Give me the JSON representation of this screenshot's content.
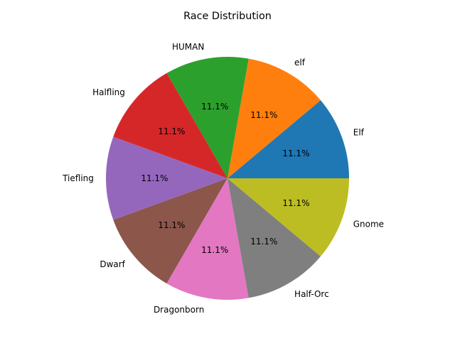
{
  "chart_data": {
    "type": "pie",
    "title": "Race Distribution",
    "categories": [
      "Elf",
      "elf",
      "HUMAN",
      "Halfling",
      "Tiefling",
      "Dwarf",
      "Dragonborn",
      "Half-Orc",
      "Gnome"
    ],
    "values": [
      1,
      1,
      1,
      1,
      1,
      1,
      1,
      1,
      1
    ],
    "percent_labels": [
      "11.1%",
      "11.1%",
      "11.1%",
      "11.1%",
      "11.1%",
      "11.1%",
      "11.1%",
      "11.1%",
      "11.1%"
    ],
    "colors": [
      "#1f77b4",
      "#ff7f0e",
      "#2ca02c",
      "#d62728",
      "#9467bd",
      "#8c564b",
      "#e377c2",
      "#7f7f7f",
      "#bcbd22"
    ],
    "start_angle_deg": 0,
    "direction": "counterclockwise"
  }
}
